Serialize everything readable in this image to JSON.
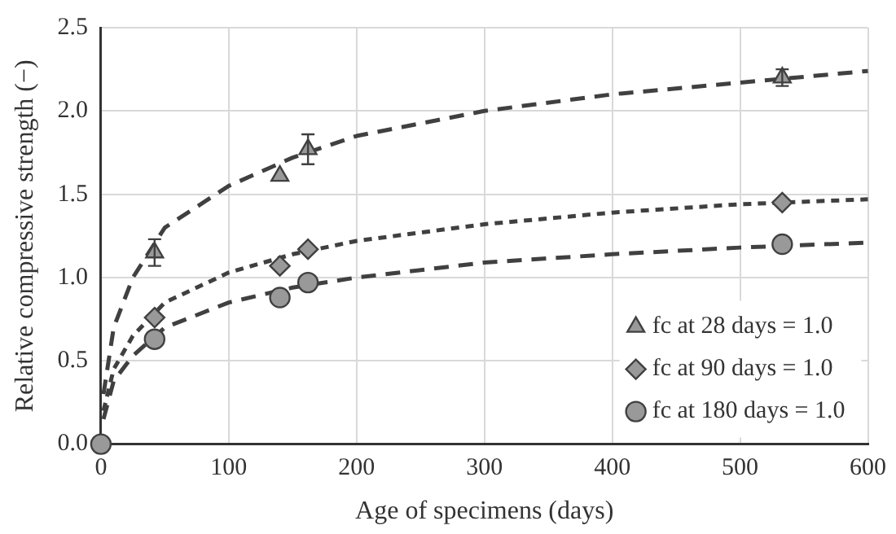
{
  "chart_data": {
    "type": "scatter",
    "xlabel": "Age of specimens (days)",
    "ylabel": "Relative compressive strength (−)",
    "xlim": [
      0,
      600
    ],
    "xticks": [
      0,
      100,
      200,
      300,
      400,
      500,
      600
    ],
    "ylim": [
      0,
      2.5
    ],
    "yticks": [
      {
        "value": 0,
        "label": "0.0"
      },
      {
        "value": 0.5,
        "label": "0.5"
      },
      {
        "value": 1,
        "label": "1.0"
      },
      {
        "value": 1.5,
        "label": "1.5"
      },
      {
        "value": 2,
        "label": "2.0"
      },
      {
        "value": 2.5,
        "label": "2.5"
      }
    ],
    "grid": true,
    "legend": "bottom right",
    "series": [
      {
        "name": "fc at 28 days = 1.0",
        "type": "scatter",
        "marker": "triangle",
        "color": "#999999",
        "x": [
          42,
          140,
          162,
          533
        ],
        "values": [
          1.15,
          1.61,
          1.77,
          2.2
        ],
        "errors": [
          0.08,
          null,
          0.09,
          0.05
        ]
      },
      {
        "name": "fc at 90 days = 1.0",
        "type": "scatter",
        "marker": "diamond",
        "color": "#999999",
        "x": [
          42,
          140,
          162,
          533
        ],
        "values": [
          0.76,
          1.07,
          1.17,
          1.45
        ]
      },
      {
        "name": "fc at 180 days = 1.0",
        "type": "scatter",
        "marker": "circle",
        "color": "#999999",
        "x": [
          0,
          42,
          140,
          162,
          533
        ],
        "values": [
          0,
          0.63,
          0.88,
          0.97,
          1.2
        ]
      },
      {
        "type": "line",
        "line_style": "dashed",
        "color": "#404040",
        "x": [
          2,
          10,
          25,
          50,
          100,
          150,
          200,
          300,
          400,
          500,
          600
        ],
        "values": [
          0.3,
          0.7,
          1.0,
          1.3,
          1.55,
          1.72,
          1.85,
          2.0,
          2.1,
          2.17,
          2.24
        ]
      },
      {
        "type": "line",
        "line_style": "dotted",
        "color": "#404040",
        "x": [
          2,
          10,
          25,
          50,
          100,
          150,
          200,
          300,
          400,
          500,
          600
        ],
        "values": [
          0.2,
          0.45,
          0.65,
          0.85,
          1.03,
          1.14,
          1.22,
          1.32,
          1.39,
          1.44,
          1.47
        ]
      },
      {
        "type": "line",
        "line_style": "dashed",
        "color": "#404040",
        "x": [
          2,
          10,
          25,
          50,
          100,
          150,
          200,
          300,
          400,
          500,
          600
        ],
        "values": [
          0.15,
          0.38,
          0.53,
          0.7,
          0.85,
          0.94,
          1.0,
          1.09,
          1.14,
          1.18,
          1.21
        ]
      }
    ]
  }
}
